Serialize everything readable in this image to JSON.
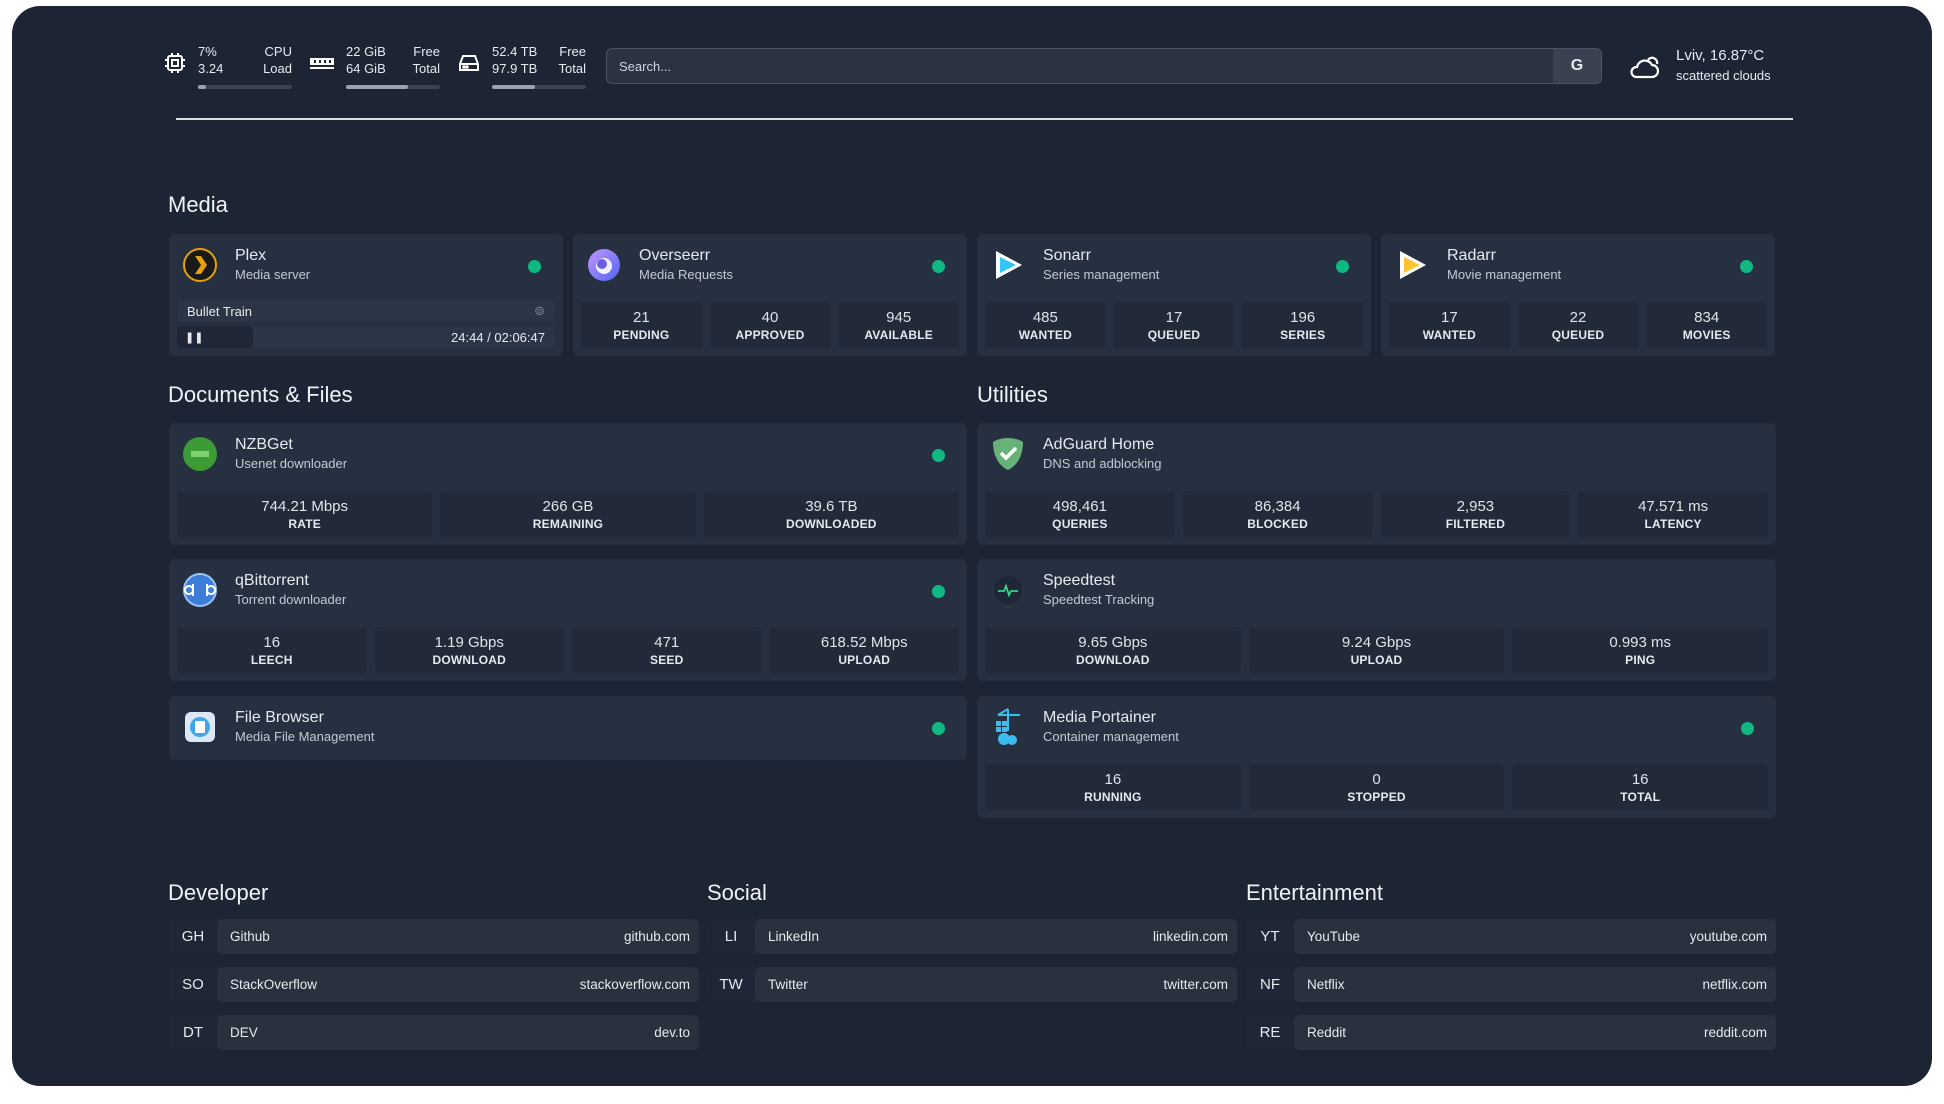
{
  "resources": {
    "cpu": {
      "top_value": "7%",
      "bottom_value": "3.24",
      "top_label": "CPU",
      "bottom_label": "Load",
      "usage_percent": 7
    },
    "memory": {
      "top_value": "22 GiB",
      "bottom_value": "64 GiB",
      "top_label": "Free",
      "bottom_label": "Total",
      "usage_percent": 66
    },
    "disk": {
      "top_value": "52.4 TB",
      "bottom_value": "97.9 TB",
      "top_label": "Free",
      "bottom_label": "Total",
      "usage_percent": 46
    }
  },
  "search": {
    "placeholder": "Search...",
    "engine_button": "G"
  },
  "weather": {
    "location_temp": "Lviv, 16.87°C",
    "condition": "scattered clouds"
  },
  "sections": {
    "media": "Media",
    "documents": "Documents & Files",
    "utilities": "Utilities",
    "developer": "Developer",
    "social": "Social",
    "entertainment": "Entertainment"
  },
  "media": [
    {
      "name": "Plex",
      "desc": "Media server",
      "status": "online",
      "now_playing": "Bullet Train",
      "time": "24:44 / 02:06:47",
      "progress_percent": 19
    },
    {
      "name": "Overseerr",
      "desc": "Media Requests",
      "status": "online",
      "stats": [
        {
          "v": "21",
          "k": "PENDING"
        },
        {
          "v": "40",
          "k": "APPROVED"
        },
        {
          "v": "945",
          "k": "AVAILABLE"
        }
      ]
    },
    {
      "name": "Sonarr",
      "desc": "Series management",
      "status": "online",
      "stats": [
        {
          "v": "485",
          "k": "WANTED"
        },
        {
          "v": "17",
          "k": "QUEUED"
        },
        {
          "v": "196",
          "k": "SERIES"
        }
      ]
    },
    {
      "name": "Radarr",
      "desc": "Movie management",
      "status": "online",
      "stats": [
        {
          "v": "17",
          "k": "WANTED"
        },
        {
          "v": "22",
          "k": "QUEUED"
        },
        {
          "v": "834",
          "k": "MOVIES"
        }
      ]
    }
  ],
  "documents": [
    {
      "name": "NZBGet",
      "desc": "Usenet downloader",
      "stats": [
        {
          "v": "744.21 Mbps",
          "k": "RATE"
        },
        {
          "v": "266 GB",
          "k": "REMAINING"
        },
        {
          "v": "39.6 TB",
          "k": "DOWNLOADED"
        }
      ]
    },
    {
      "name": "qBittorrent",
      "desc": "Torrent downloader",
      "stats": [
        {
          "v": "16",
          "k": "LEECH"
        },
        {
          "v": "1.19 Gbps",
          "k": "DOWNLOAD"
        },
        {
          "v": "471",
          "k": "SEED"
        },
        {
          "v": "618.52 Mbps",
          "k": "UPLOAD"
        }
      ]
    },
    {
      "name": "File Browser",
      "desc": "Media File Management"
    }
  ],
  "utilities": [
    {
      "name": "AdGuard Home",
      "desc": "DNS and adblocking",
      "stats": [
        {
          "v": "498,461",
          "k": "QUERIES"
        },
        {
          "v": "86,384",
          "k": "BLOCKED"
        },
        {
          "v": "2,953",
          "k": "FILTERED"
        },
        {
          "v": "47.571 ms",
          "k": "LATENCY"
        }
      ]
    },
    {
      "name": "Speedtest",
      "desc": "Speedtest Tracking",
      "stats": [
        {
          "v": "9.65 Gbps",
          "k": "DOWNLOAD"
        },
        {
          "v": "9.24 Gbps",
          "k": "UPLOAD"
        },
        {
          "v": "0.993 ms",
          "k": "PING"
        }
      ]
    },
    {
      "name": "Media Portainer",
      "desc": "Container management",
      "stats": [
        {
          "v": "16",
          "k": "RUNNING"
        },
        {
          "v": "0",
          "k": "STOPPED"
        },
        {
          "v": "16",
          "k": "TOTAL"
        }
      ]
    }
  ],
  "bookmarks": {
    "developer": [
      {
        "abbr": "GH",
        "name": "Github",
        "url": "github.com"
      },
      {
        "abbr": "SO",
        "name": "StackOverflow",
        "url": "stackoverflow.com"
      },
      {
        "abbr": "DT",
        "name": "DEV",
        "url": "dev.to"
      }
    ],
    "social": [
      {
        "abbr": "LI",
        "name": "LinkedIn",
        "url": "linkedin.com"
      },
      {
        "abbr": "TW",
        "name": "Twitter",
        "url": "twitter.com"
      }
    ],
    "entertainment": [
      {
        "abbr": "YT",
        "name": "YouTube",
        "url": "youtube.com"
      },
      {
        "abbr": "NF",
        "name": "Netflix",
        "url": "netflix.com"
      },
      {
        "abbr": "RE",
        "name": "Reddit",
        "url": "reddit.com"
      }
    ]
  },
  "colors": {
    "background": "#1d2535",
    "card": "#273040",
    "status_online": "#10b981"
  }
}
